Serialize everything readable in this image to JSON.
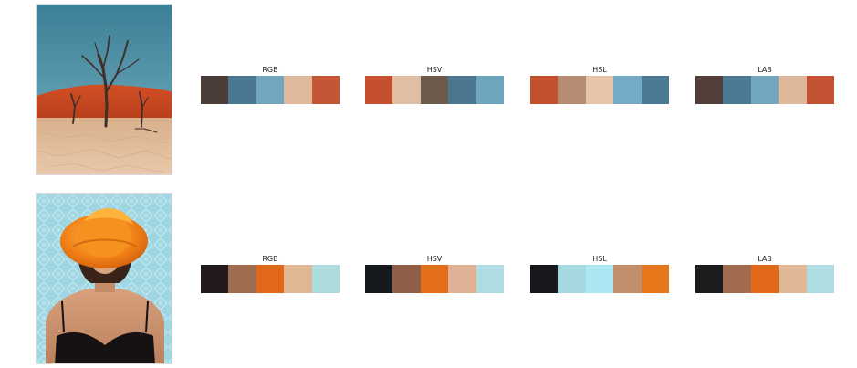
{
  "rows": [
    {
      "image": {
        "subject": "desert-dead-trees-photo"
      },
      "palettes": [
        {
          "label": "RGB",
          "colors": [
            "#4b3e38",
            "#4a7893",
            "#73a6bf",
            "#dfb99a",
            "#c45535"
          ]
        },
        {
          "label": "HSV",
          "colors": [
            "#c5502f",
            "#dfbea3",
            "#6c5a4b",
            "#4a7690",
            "#6ea6bf"
          ]
        },
        {
          "label": "HSL",
          "colors": [
            "#c3502c",
            "#b68c73",
            "#e6c4a8",
            "#75aac6",
            "#4b7995"
          ]
        },
        {
          "label": "LAB",
          "colors": [
            "#533f39",
            "#4b7993",
            "#73a7c0",
            "#ddb89a",
            "#c35233"
          ]
        }
      ]
    },
    {
      "image": {
        "subject": "woman-orange-hat-photo"
      },
      "palettes": [
        {
          "label": "RGB",
          "colors": [
            "#221a1b",
            "#a06c50",
            "#e2671a",
            "#e1b692",
            "#addcdf"
          ]
        },
        {
          "label": "HSV",
          "colors": [
            "#16191e",
            "#8f6047",
            "#e46e19",
            "#dfb295",
            "#afdce3"
          ]
        },
        {
          "label": "HSL",
          "colors": [
            "#17181c",
            "#a6d8df",
            "#ade6f3",
            "#c28f6d",
            "#e6781b"
          ]
        },
        {
          "label": "LAB",
          "colors": [
            "#1e1b1e",
            "#a06b4f",
            "#e2691a",
            "#e1b896",
            "#addde2"
          ]
        }
      ]
    }
  ]
}
